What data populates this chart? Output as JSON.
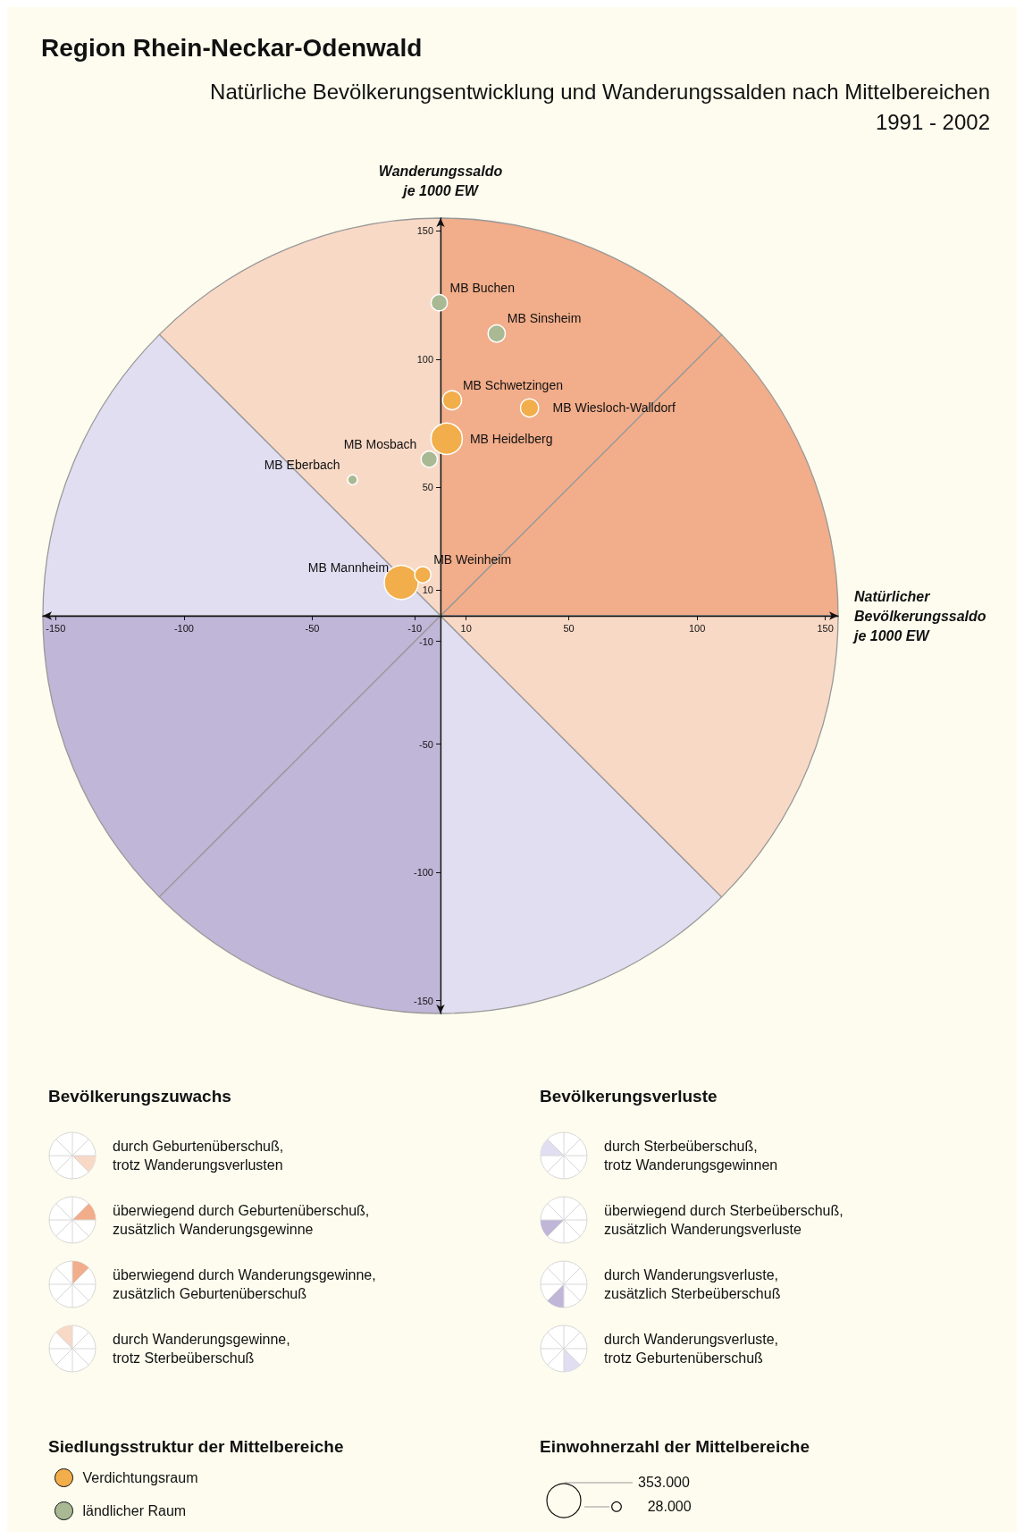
{
  "chart_data": {
    "type": "bubble",
    "title": "Region Rhein-Neckar-Odenwald",
    "subtitle": "Natürliche Bevölkerungsentwicklung und Wanderungssalden nach Mittelbereichen\n1991 - 2002",
    "xlabel": "Natürlicher\nBevölkerungssaldo\nje 1000 EW",
    "ylabel": "Wanderungssaldo\nje 1000 EW",
    "legend_title": "Siedlungsstruktur der Mittelbereiche",
    "xlim": [
      -155,
      155
    ],
    "ylim": [
      -155,
      155
    ],
    "xticks": [
      -150,
      -100,
      -50,
      -10,
      10,
      50,
      100,
      150
    ],
    "yticks": [
      -150,
      -100,
      -50,
      -10,
      10,
      50,
      100,
      150
    ],
    "grid": false,
    "legend": "bottom left",
    "marker": "circle",
    "size_legend": [
      {
        "value": 353000,
        "label": "353.000"
      },
      {
        "value": 28000,
        "label": "28.000"
      }
    ],
    "series": [
      {
        "name": "Verdichtungsraum",
        "color": "#f2ae4a",
        "x": [
          4.5,
          34.7,
          2.4,
          -15.3,
          -6.9
        ],
        "values": [
          84,
          81,
          69,
          13,
          16
        ],
        "sizes": [
          110000,
          100000,
          300000,
          353000,
          80000
        ]
      },
      {
        "name": "ländlicher Raum",
        "color": "#a8b993",
        "x": [
          -0.5,
          21.9,
          -4.4,
          -34.3
        ],
        "values": [
          122,
          110,
          61,
          53
        ],
        "sizes": [
          80000,
          90000,
          80000,
          30000
        ]
      }
    ],
    "annotations": [
      "Bevölkerungszuwachs",
      "durch Geburtenüberschuß,\ntrotz Wanderungsverlusten",
      "überwiegend durch Geburtenüberschuß,\nzusätzlich Wanderungsgewinne",
      "überwiegend durch Wanderungsgewinne,\nzusätzlich Geburtenüberschuß",
      "durch Wanderungsgewinne,\ntrotz Sterbeüberschuß",
      "Bevölkerungsverluste",
      "durch Sterbeüberschuß,\ntrotz Wanderungsgewinnen",
      "überwiegend durch Sterbeüberschuß,\nzusätzlich Wanderungsverluste",
      "durch Wanderungsverluste,\nzusätzlich Sterbeüberschuß",
      "durch Wanderungsverluste,\ntrotz Geburtenüberschuß",
      "Einwohnerzahl der Mittelbereiche",
      {
        "text": "MB Buchen",
        "x": -0.5,
        "y": 122
      },
      {
        "text": "MB Sinsheim",
        "x": 21.9,
        "y": 110
      },
      {
        "text": "MB Schwetzingen",
        "x": 4.5,
        "y": 84
      },
      {
        "text": "MB Wiesloch-Walldorf",
        "x": 34.7,
        "y": 81
      },
      {
        "text": "MB Heidelberg",
        "x": 2.4,
        "y": 69
      },
      {
        "text": "MB Mosbach",
        "x": -4.4,
        "y": 61
      },
      {
        "text": "MB Eberbach",
        "x": -34.3,
        "y": 53
      },
      {
        "text": "MB Mannheim",
        "x": -15.3,
        "y": 13
      },
      {
        "text": "MB Weinheim",
        "x": -6.9,
        "y": 16
      }
    ]
  }
}
